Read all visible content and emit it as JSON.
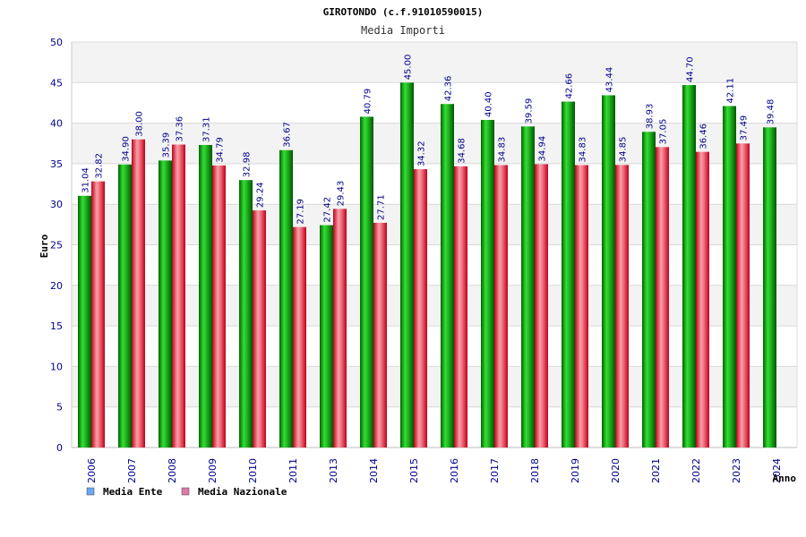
{
  "chart_data": {
    "type": "bar",
    "title": "GIROTONDO (c.f.91010590015)",
    "subtitle": "Media Importi",
    "ylabel": "Euro",
    "xlabel": "Anno",
    "ylim": [
      0,
      50
    ],
    "yticks": [
      0,
      5,
      10,
      15,
      20,
      25,
      30,
      35,
      40,
      45,
      50
    ],
    "grid": true,
    "legend_position": "bottom-left",
    "categories": [
      "2006",
      "2007",
      "2008",
      "2009",
      "2010",
      "2011",
      "2013",
      "2014",
      "2015",
      "2016",
      "2017",
      "2018",
      "2019",
      "2020",
      "2021",
      "2022",
      "2023",
      "2024"
    ],
    "series": [
      {
        "name": "Media Ente",
        "color": "#00aa00",
        "legend_color": "#6aa8f0",
        "values": [
          31.04,
          34.9,
          35.39,
          37.31,
          32.98,
          36.67,
          27.42,
          40.79,
          45.0,
          42.36,
          40.4,
          39.59,
          42.66,
          43.44,
          38.93,
          44.7,
          42.11,
          39.48
        ],
        "labels": [
          "31.04",
          "34.90",
          "35.39",
          "37.31",
          "32.98",
          "36.67",
          "27.42",
          "40.79",
          "45.00",
          "42.36",
          "40.40",
          "39.59",
          "42.66",
          "43.44",
          "38.93",
          "44.70",
          "42.11",
          "39.48"
        ]
      },
      {
        "name": "Media Nazionale",
        "color": "#e8202a",
        "legend_color": "#e07aa8",
        "values": [
          32.82,
          38.0,
          37.36,
          34.79,
          29.24,
          27.19,
          29.43,
          27.71,
          34.32,
          34.68,
          34.83,
          34.94,
          34.83,
          34.85,
          37.05,
          36.46,
          37.49,
          null
        ],
        "labels": [
          "32.82",
          "38.00",
          "37.36",
          "34.79",
          "29.24",
          "27.19",
          "29.43",
          "27.71",
          "34.32",
          "34.68",
          "34.83",
          "34.94",
          "34.83",
          "34.85",
          "37.05",
          "36.46",
          "37.49",
          ""
        ]
      }
    ]
  }
}
